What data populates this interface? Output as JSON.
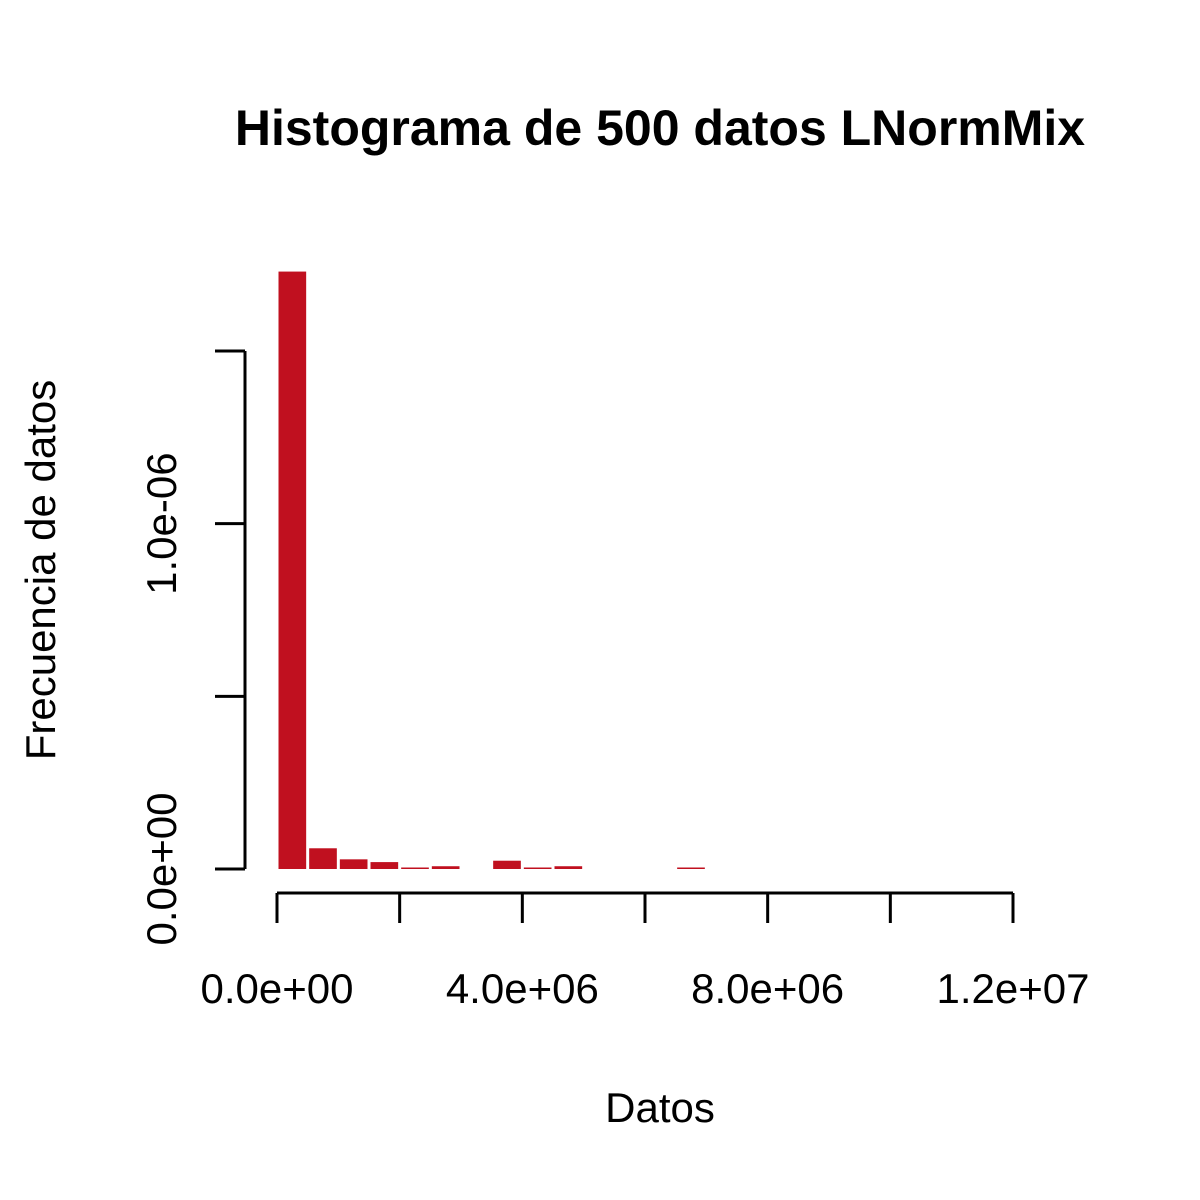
{
  "chart_data": {
    "type": "bar",
    "title": "Histograma de 500 datos LNormMix",
    "xlabel": "Datos",
    "ylabel": "Frecuencia de datos",
    "bar_color": "#C0101F",
    "bin_width": 500000,
    "bins": [
      {
        "start": 0,
        "end": 500000,
        "value": 1.73e-06
      },
      {
        "start": 500000,
        "end": 1000000,
        "value": 6e-08
      },
      {
        "start": 1000000,
        "end": 1500000,
        "value": 2.8e-08
      },
      {
        "start": 1500000,
        "end": 2000000,
        "value": 2e-08
      },
      {
        "start": 2000000,
        "end": 2500000,
        "value": 4e-09
      },
      {
        "start": 2500000,
        "end": 3000000,
        "value": 8e-09
      },
      {
        "start": 3000000,
        "end": 3500000,
        "value": 0
      },
      {
        "start": 3500000,
        "end": 4000000,
        "value": 2.4e-08
      },
      {
        "start": 4000000,
        "end": 4500000,
        "value": 4e-09
      },
      {
        "start": 4500000,
        "end": 5000000,
        "value": 8e-09
      },
      {
        "start": 5000000,
        "end": 5500000,
        "value": 0
      },
      {
        "start": 5500000,
        "end": 6000000,
        "value": 0
      },
      {
        "start": 6000000,
        "end": 6500000,
        "value": 0
      },
      {
        "start": 6500000,
        "end": 7000000,
        "value": 4e-09
      }
    ],
    "xlim": [
      0,
      12000000
    ],
    "ylim": [
      0,
      1.5e-06
    ],
    "x_ticks": [
      0,
      2000000,
      4000000,
      6000000,
      8000000,
      10000000,
      12000000
    ],
    "x_tick_labels": [
      {
        "value": 0,
        "label": "0.0e+00"
      },
      {
        "value": 4000000,
        "label": "4.0e+06"
      },
      {
        "value": 8000000,
        "label": "8.0e+06"
      },
      {
        "value": 12000000,
        "label": "1.2e+07"
      }
    ],
    "y_ticks": [
      0,
      5e-07,
      1e-06,
      1.5e-06
    ],
    "y_tick_labels": [
      {
        "value": 0,
        "label": "0.0e+00"
      },
      {
        "value": 1e-06,
        "label": "1.0e-06"
      }
    ],
    "grid": false
  }
}
